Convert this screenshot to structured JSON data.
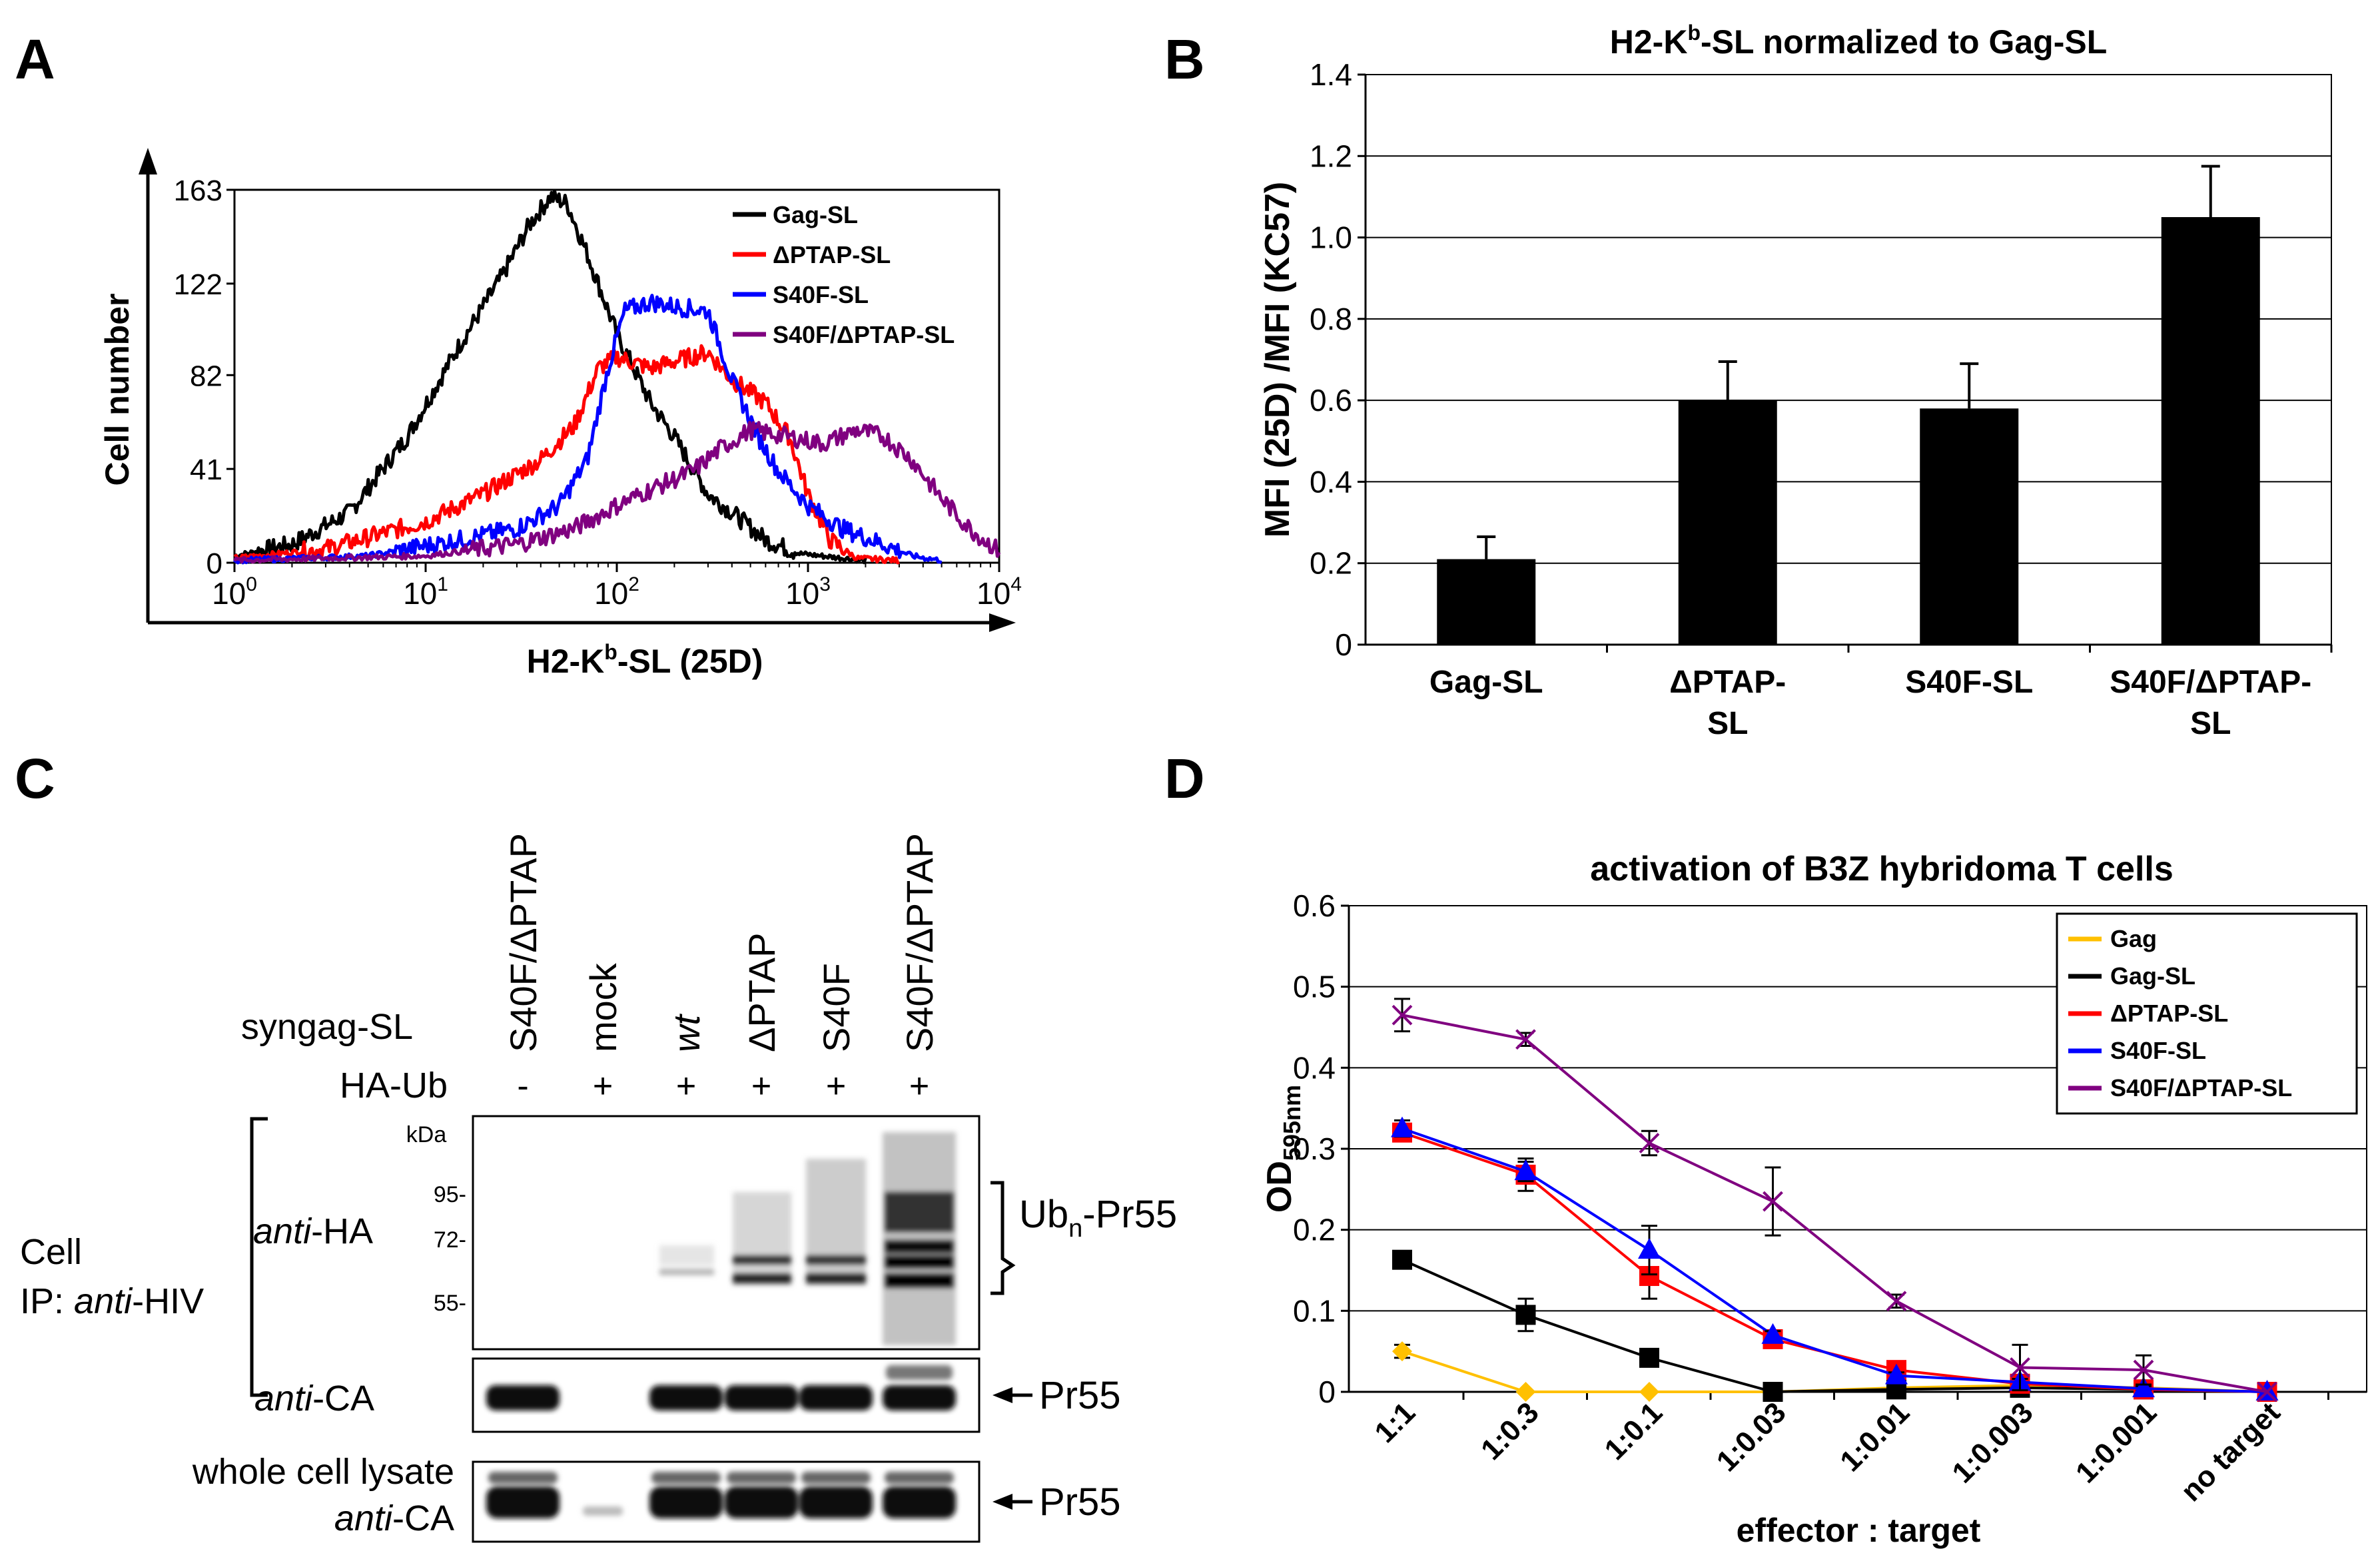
{
  "panels": {
    "a": "A",
    "b": "B",
    "c": "C",
    "d": "D"
  },
  "chart_data": [
    {
      "panel": "A",
      "type": "line",
      "xscale": "log",
      "xlim": [
        1,
        10000
      ],
      "ylim": [
        0,
        163
      ],
      "xlabel_main": "H2-K",
      "xlabel_sup": "b",
      "xlabel_tail": "-SL (25D)",
      "ylabel": "Cell number",
      "yticks": [
        "0",
        "41",
        "82",
        "122",
        "163"
      ],
      "ytick_values": [
        0,
        41,
        82,
        122,
        163
      ],
      "xticks": [
        {
          "base": "10",
          "exp": "0"
        },
        {
          "base": "10",
          "exp": "1"
        },
        {
          "base": "10",
          "exp": "2"
        },
        {
          "base": "10",
          "exp": "3"
        },
        {
          "base": "10",
          "exp": "4"
        }
      ],
      "legend_position": "top-right",
      "series": [
        {
          "name": "Gag-SL",
          "color": "#000000",
          "points": [
            [
              1,
              3
            ],
            [
              2,
              8
            ],
            [
              4,
              22
            ],
            [
              8,
              55
            ],
            [
              15,
              95
            ],
            [
              25,
              125
            ],
            [
              35,
              148
            ],
            [
              45,
              160
            ],
            [
              55,
              157
            ],
            [
              70,
              135
            ],
            [
              100,
              100
            ],
            [
              150,
              70
            ],
            [
              200,
              55
            ],
            [
              300,
              30
            ],
            [
              400,
              22
            ],
            [
              600,
              10
            ],
            [
              900,
              4
            ],
            [
              2000,
              1
            ]
          ]
        },
        {
          "name": "ΔPTAP-SL",
          "color": "#ff0000",
          "points": [
            [
              1,
              2
            ],
            [
              3,
              6
            ],
            [
              10,
              18
            ],
            [
              20,
              30
            ],
            [
              40,
              45
            ],
            [
              60,
              60
            ],
            [
              80,
              85
            ],
            [
              100,
              90
            ],
            [
              150,
              85
            ],
            [
              200,
              88
            ],
            [
              300,
              92
            ],
            [
              400,
              80
            ],
            [
              600,
              70
            ],
            [
              800,
              55
            ],
            [
              1000,
              30
            ],
            [
              1300,
              10
            ],
            [
              1800,
              2
            ],
            [
              3000,
              1
            ]
          ]
        },
        {
          "name": "S40F-SL",
          "color": "#0000ff",
          "points": [
            [
              1,
              1
            ],
            [
              5,
              3
            ],
            [
              15,
              10
            ],
            [
              30,
              15
            ],
            [
              50,
              25
            ],
            [
              70,
              45
            ],
            [
              90,
              85
            ],
            [
              110,
              110
            ],
            [
              150,
              114
            ],
            [
              200,
              112
            ],
            [
              300,
              110
            ],
            [
              400,
              80
            ],
            [
              550,
              55
            ],
            [
              700,
              40
            ],
            [
              1000,
              25
            ],
            [
              1500,
              15
            ],
            [
              2500,
              8
            ],
            [
              3500,
              3
            ],
            [
              5000,
              1
            ]
          ]
        },
        {
          "name": "S40F/ΔPTAP-SL",
          "color": "#800080",
          "points": [
            [
              1,
              1
            ],
            [
              10,
              3
            ],
            [
              30,
              8
            ],
            [
              60,
              15
            ],
            [
              100,
              25
            ],
            [
              150,
              32
            ],
            [
              250,
              40
            ],
            [
              350,
              50
            ],
            [
              500,
              58
            ],
            [
              800,
              55
            ],
            [
              1200,
              52
            ],
            [
              1800,
              58
            ],
            [
              2500,
              55
            ],
            [
              3500,
              45
            ],
            [
              5000,
              28
            ],
            [
              7000,
              15
            ],
            [
              10000,
              5
            ]
          ]
        }
      ]
    },
    {
      "panel": "B",
      "type": "bar",
      "title_main": "H2-K",
      "title_sup": "b",
      "title_tail": "-SL normalized to Gag-SL",
      "ylabel": "MFI (25D) /MFI (KC57)",
      "ylim": [
        0,
        1.4
      ],
      "yticks": [
        "0",
        "0.2",
        "0.4",
        "0.6",
        "0.8",
        "1.0",
        "1.2",
        "1.4"
      ],
      "ytick_values": [
        0,
        0.2,
        0.4,
        0.6,
        0.8,
        1.0,
        1.2,
        1.4
      ],
      "grid": true,
      "category_lines": [
        [
          "Gag-SL"
        ],
        [
          "ΔPTAP-",
          "SL"
        ],
        [
          "S40F-SL"
        ],
        [
          "S40F/ΔPTAP-",
          "SL"
        ]
      ],
      "values": [
        0.21,
        0.6,
        0.58,
        1.05
      ],
      "errors": [
        0.055,
        0.095,
        0.11,
        0.125
      ]
    },
    {
      "panel": "D",
      "type": "line",
      "title": "activation of B3Z hybridoma T cells",
      "ylabel_main": "OD",
      "ylabel_sub": "595nm",
      "xlabel": "effector : target",
      "ylim": [
        0,
        0.6
      ],
      "yticks": [
        "0",
        "0.1",
        "0.2",
        "0.3",
        "0.4",
        "0.5",
        "0.6"
      ],
      "ytick_values": [
        0,
        0.1,
        0.2,
        0.3,
        0.4,
        0.5,
        0.6
      ],
      "grid": true,
      "categories": [
        "1:1",
        "1:0.3",
        "1:0.1",
        "1:0.03",
        "1:0.01",
        "1:0.003",
        "1:0.001",
        "no target"
      ],
      "legend_position": "top-right",
      "series": [
        {
          "name": "Gag",
          "color": "#ffc000",
          "marker": "diamond",
          "values": [
            0.05,
            0.0,
            0.0,
            0.0,
            0.005,
            0.008,
            0.005,
            0.0
          ],
          "errors": [
            0.008,
            0,
            0,
            0,
            0,
            0,
            0,
            0
          ]
        },
        {
          "name": "Gag-SL",
          "color": "#000000",
          "marker": "square",
          "values": [
            0.163,
            0.095,
            0.042,
            0.0,
            0.003,
            0.005,
            0.003,
            0.0
          ],
          "errors": [
            0,
            0.02,
            0,
            0,
            0,
            0,
            0,
            0
          ]
        },
        {
          "name": "ΔPTAP-SL",
          "color": "#ff0000",
          "marker": "square",
          "values": [
            0.32,
            0.268,
            0.143,
            0.065,
            0.027,
            0.01,
            0.003,
            0.0
          ],
          "errors": [
            0.01,
            0.02,
            0.028,
            0.008,
            0.005,
            0.004,
            0.003,
            0
          ]
        },
        {
          "name": "S40F-SL",
          "color": "#0000ff",
          "marker": "triangle",
          "values": [
            0.325,
            0.272,
            0.175,
            0.07,
            0.02,
            0.012,
            0.004,
            0.0
          ],
          "errors": [
            0.01,
            0.012,
            0.03,
            0.005,
            0.004,
            0.004,
            0.003,
            0
          ]
        },
        {
          "name": "S40F/ΔPTAP-SL",
          "color": "#800080",
          "marker": "x",
          "values": [
            0.465,
            0.435,
            0.307,
            0.235,
            0.112,
            0.03,
            0.027,
            0.0
          ],
          "errors": [
            0.02,
            0.008,
            0.015,
            0.042,
            0.008,
            0.028,
            0.018,
            0
          ]
        }
      ]
    }
  ],
  "blot": {
    "row_title_syngag": "syngag-SL",
    "row_title_haub": "HA-Ub",
    "lanes": [
      {
        "label": "S40F/ΔPTAP",
        "italic": false,
        "ha_ub": "-"
      },
      {
        "label": "mock",
        "italic": false,
        "ha_ub": "+"
      },
      {
        "label": "wt",
        "italic": true,
        "ha_ub": "+"
      },
      {
        "label": "ΔPTAP",
        "italic": false,
        "ha_ub": "+"
      },
      {
        "label": "S40F",
        "italic": false,
        "ha_ub": "+"
      },
      {
        "label": "S40F/ΔPTAP",
        "italic": false,
        "ha_ub": "+"
      }
    ],
    "kda_label": "kDa",
    "markers": [
      "95-",
      "72-",
      "55-"
    ],
    "anti_ha_italic": "anti",
    "anti_ha_tail": "-HA",
    "anti_ca_italic": "anti",
    "anti_ca_tail": "-CA",
    "cell_label": "Cell",
    "ip_prefix": "IP: ",
    "ip_italic": "anti",
    "ip_tail": "-HIV",
    "whole_cell": "whole cell lysate",
    "wcl_italic": "anti",
    "wcl_tail": "-CA",
    "ubn_main": "Ub",
    "ubn_sub": "n",
    "ubn_tail": "-Pr55",
    "pr55_label": "Pr55",
    "pr55_label_2": "Pr55"
  }
}
